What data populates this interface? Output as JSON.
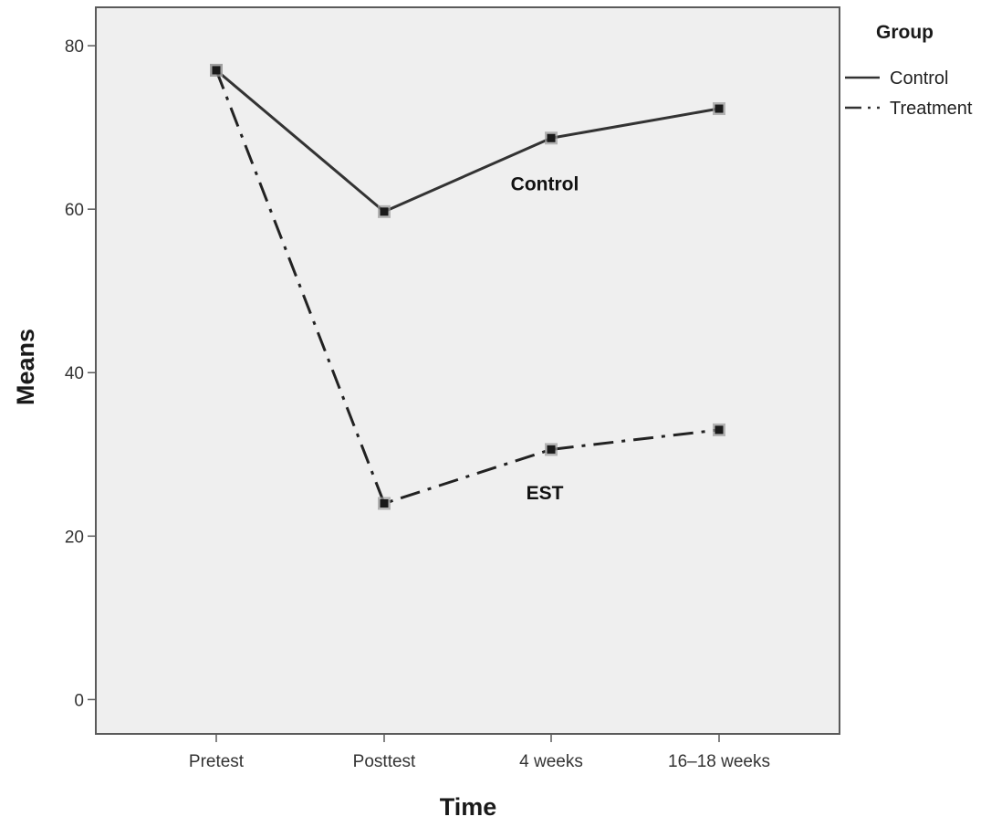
{
  "chart_data": {
    "type": "line",
    "xlabel": "Time",
    "ylabel": "Means",
    "categories": [
      "Pretest",
      "Posttest",
      "4 weeks",
      "16–18 weeks"
    ],
    "y_ticks": [
      0,
      20,
      40,
      60,
      80
    ],
    "ylim": [
      -4.2,
      84.7
    ],
    "grid": false,
    "legend": {
      "title": "Group",
      "placement": "outside-right-top",
      "entries": [
        {
          "label": "Control",
          "line_style": "solid"
        },
        {
          "label": "Treatment",
          "line_style": "dash-dot"
        }
      ]
    },
    "series": [
      {
        "name": "Control",
        "values": [
          77,
          59.7,
          68.7,
          72.3
        ],
        "line_style": "solid",
        "color": "#333333"
      },
      {
        "name": "Treatment",
        "values": [
          77,
          24,
          30.6,
          33
        ],
        "line_style": "dash-dot",
        "color": "#222222"
      }
    ],
    "annotations": [
      {
        "text": "Control",
        "category": "4 weeks",
        "value": 62.3
      },
      {
        "text": "EST",
        "category": "4 weeks",
        "value": 24.5
      }
    ],
    "colors": {
      "plot_background": "#efefef",
      "plot_border": "#5a5a5a",
      "marker": "#1a1a1a"
    }
  }
}
